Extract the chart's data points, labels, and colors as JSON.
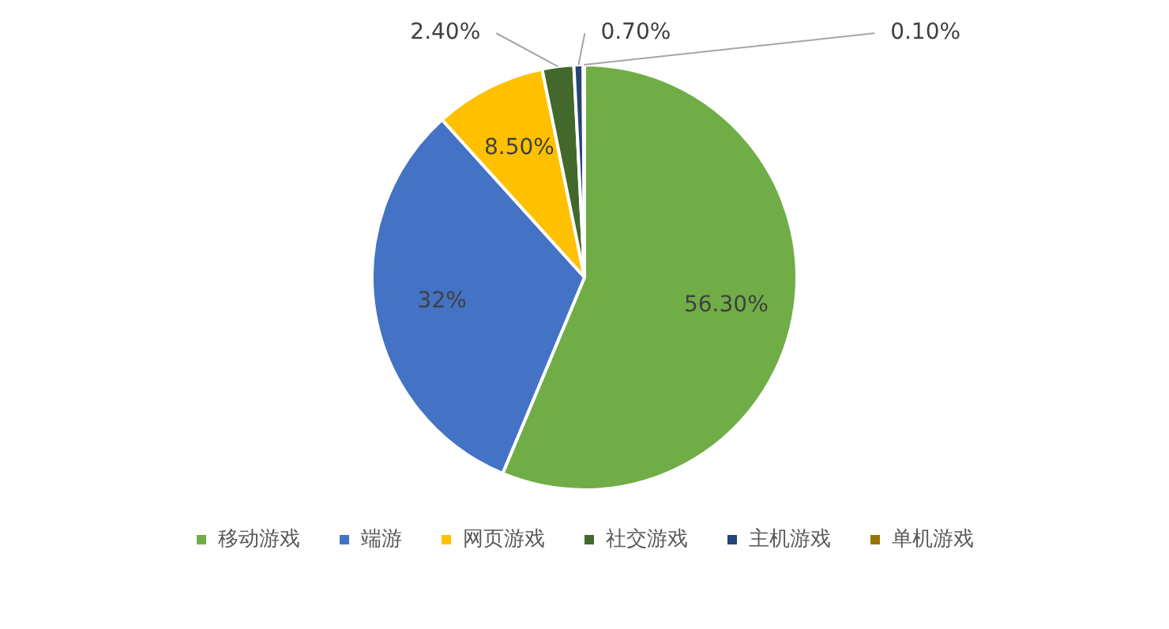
{
  "chart_data": {
    "type": "pie",
    "categories": [
      "移动游戏",
      "端游",
      "网页游戏",
      "社交游戏",
      "主机游戏",
      "单机游戏"
    ],
    "values": [
      56.3,
      32,
      8.5,
      2.4,
      0.7,
      0.1
    ],
    "value_labels": [
      "56.30%",
      "32%",
      "8.50%",
      "2.40%",
      "0.70%",
      "0.10%"
    ],
    "colors": [
      "#70ad47",
      "#4472c4",
      "#ffc000",
      "#43682b",
      "#264478",
      "#997300"
    ],
    "legend": "bottom"
  }
}
